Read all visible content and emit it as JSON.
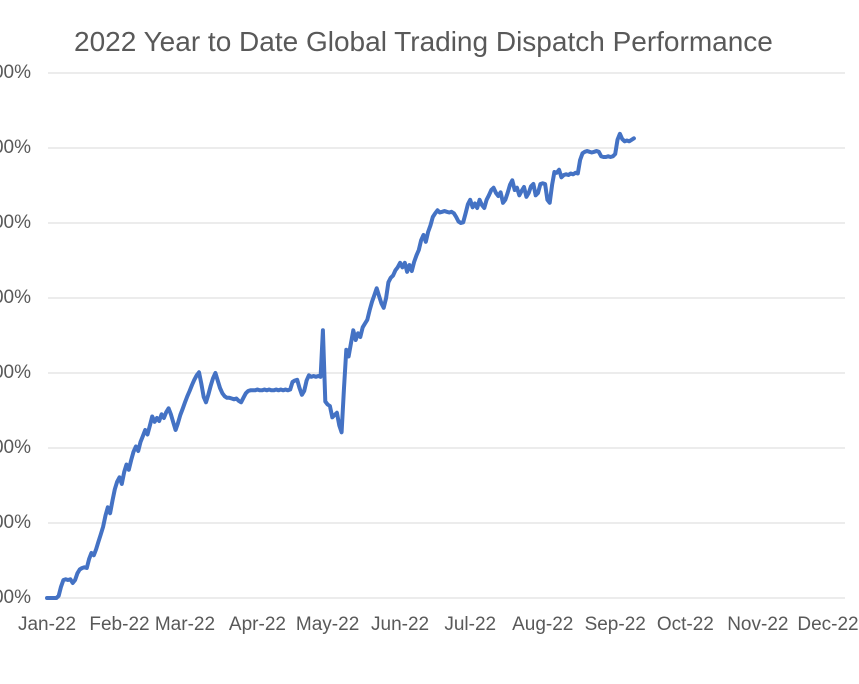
{
  "chart_data": {
    "type": "line",
    "title": "2022 Year to Date Global Trading Dispatch Performance",
    "legend": "none",
    "grid": true,
    "x_tick_labels": [
      "Jan-22",
      "Feb-22",
      "Mar-22",
      "Apr-22",
      "May-22",
      "Jun-22",
      "Jul-22",
      "Aug-22",
      "Sep-22",
      "Oct-22",
      "Nov-22",
      "Dec-22"
    ],
    "y_tick_labels_top_to_bottom": [
      "00%",
      "00%",
      "00%",
      "00%",
      "00%",
      "00%",
      "00%",
      "00%"
    ],
    "y_axis": {
      "min": 0,
      "max": 700,
      "gridline_step": 100,
      "labels_clipped_at_left_edge": true
    },
    "x_axis": {
      "unit": "day-of-year-2022",
      "range_days": [
        1,
        365
      ],
      "last_label_clipped_at_right_edge": true
    },
    "colors": {
      "line": "#4472C4",
      "gridline": "#D9D9D9",
      "text": "#595959",
      "background": "#FFFFFF"
    },
    "series": [
      {
        "name": "dispatch-performance",
        "color": "#4472C4",
        "start_day": 1,
        "y_unit": "percent, gridline spacing = 100",
        "values": [
          0,
          0,
          0,
          0,
          0,
          3,
          15,
          24,
          25,
          24,
          25,
          20,
          24,
          33,
          38,
          40,
          41,
          40,
          52,
          60,
          57,
          65,
          75,
          85,
          95,
          110,
          121,
          113,
          130,
          145,
          155,
          161,
          152,
          168,
          178,
          171,
          184,
          195,
          202,
          196,
          208,
          216,
          224,
          218,
          230,
          242,
          235,
          240,
          236,
          245,
          240,
          248,
          253,
          245,
          234,
          224,
          233,
          244,
          252,
          261,
          269,
          276,
          284,
          291,
          297,
          301,
          286,
          268,
          261,
          271,
          283,
          293,
          300,
          290,
          280,
          273,
          269,
          267,
          267,
          266,
          265,
          266,
          263,
          261,
          267,
          273,
          276,
          277,
          277,
          277,
          278,
          277,
          277,
          278,
          277,
          278,
          277,
          277,
          278,
          277,
          278,
          277,
          278,
          277,
          278,
          288,
          290,
          291,
          280,
          271,
          276,
          290,
          297,
          295,
          296,
          295,
          296,
          295,
          357,
          262,
          258,
          256,
          241,
          244,
          247,
          230,
          221,
          280,
          331,
          322,
          340,
          357,
          344,
          353,
          348,
          361,
          366,
          371,
          384,
          395,
          404,
          413,
          403,
          393,
          387,
          400,
          421,
          427,
          430,
          437,
          441,
          447,
          441,
          447,
          435,
          444,
          436,
          448,
          457,
          464,
          477,
          484,
          475,
          488,
          497,
          508,
          513,
          517,
          514,
          515,
          516,
          515,
          514,
          515,
          513,
          508,
          502,
          500,
          501,
          513,
          525,
          531,
          521,
          526,
          520,
          531,
          524,
          520,
          531,
          537,
          544,
          547,
          540,
          536,
          541,
          527,
          531,
          540,
          551,
          557,
          544,
          547,
          537,
          543,
          548,
          535,
          540,
          549,
          552,
          537,
          540,
          552,
          553,
          552,
          531,
          527,
          551,
          568,
          567,
          571,
          561,
          564,
          565,
          564,
          566,
          565,
          567,
          566,
          584,
          593,
          595,
          596,
          595,
          594,
          595,
          596,
          595,
          589,
          588,
          588,
          589,
          588,
          589,
          592,
          611,
          619,
          612,
          609,
          610,
          609,
          611,
          613
        ]
      }
    ]
  }
}
